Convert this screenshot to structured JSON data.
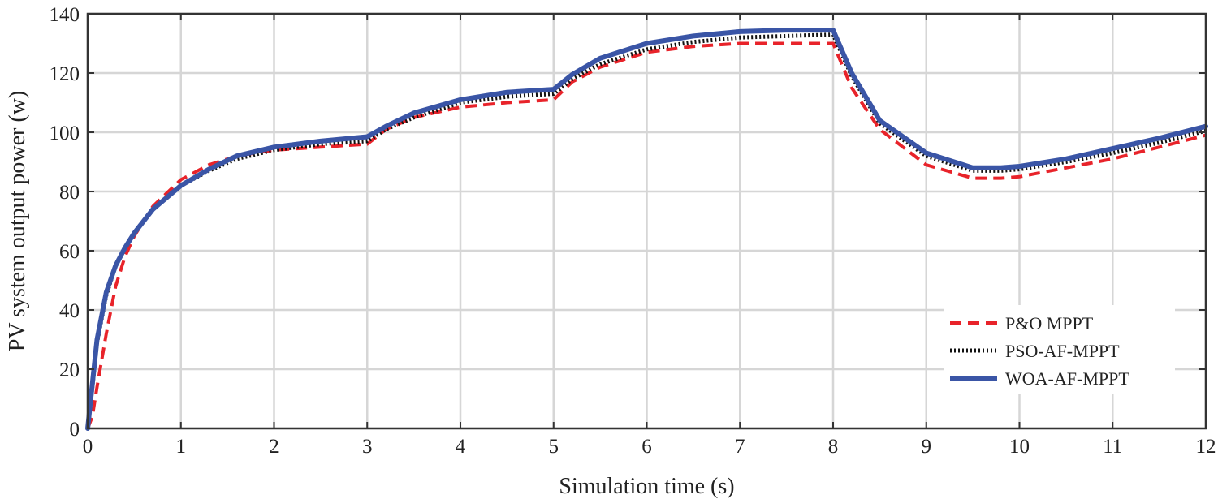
{
  "chart_data": {
    "type": "line",
    "title": "",
    "xlabel": "Simulation time (s)",
    "ylabel": "PV system output power (w)",
    "xlim": [
      0,
      12
    ],
    "ylim": [
      0,
      140
    ],
    "xticks": [
      0,
      1,
      2,
      3,
      4,
      5,
      6,
      7,
      8,
      9,
      10,
      11,
      12
    ],
    "yticks": [
      0,
      20,
      40,
      60,
      80,
      100,
      120,
      140
    ],
    "grid": true,
    "legend_position": "bottom-right",
    "series": [
      {
        "name": "P&O MPPT",
        "color": "#e8232a",
        "style": "dashed",
        "x": [
          0,
          0.05,
          0.1,
          0.2,
          0.3,
          0.4,
          0.5,
          0.7,
          1.0,
          1.3,
          1.6,
          2.0,
          2.5,
          3.0,
          3.2,
          3.5,
          4.0,
          4.5,
          5.0,
          5.2,
          5.5,
          6.0,
          6.5,
          7.0,
          7.5,
          8.0,
          8.2,
          8.5,
          9.0,
          9.5,
          9.8,
          10.0,
          10.5,
          11.0,
          11.5,
          12.0
        ],
        "y": [
          0,
          4,
          14,
          32,
          48,
          58,
          65,
          75,
          84,
          89,
          92,
          94,
          95,
          96,
          101,
          105,
          108.5,
          110,
          111,
          117,
          122,
          127,
          129,
          130,
          130,
          130,
          115,
          101,
          89,
          84.5,
          84.5,
          85,
          88,
          91,
          95,
          99
        ]
      },
      {
        "name": "PSO-AF-MPPT",
        "color": "#111111",
        "style": "dotted",
        "x": [
          0,
          0.05,
          0.1,
          0.2,
          0.3,
          0.4,
          0.5,
          0.7,
          1.0,
          1.3,
          1.6,
          2.0,
          2.5,
          3.0,
          3.2,
          3.5,
          4.0,
          4.5,
          5.0,
          5.2,
          5.5,
          6.0,
          6.5,
          7.0,
          7.5,
          8.0,
          8.2,
          8.5,
          9.0,
          9.5,
          9.8,
          10.0,
          10.5,
          11.0,
          11.5,
          12.0
        ],
        "y": [
          0,
          14,
          29,
          45,
          55,
          61,
          66,
          74,
          82,
          87,
          91,
          94,
          96,
          97,
          101,
          105,
          110,
          112,
          113,
          118,
          123,
          128,
          130.5,
          132,
          132.5,
          133,
          119,
          103,
          92,
          87,
          87,
          87.5,
          90,
          93,
          96.5,
          100.5
        ]
      },
      {
        "name": "WOA-AF-MPPT",
        "color": "#3a55a6",
        "style": "solid",
        "x": [
          0,
          0.05,
          0.1,
          0.2,
          0.3,
          0.4,
          0.5,
          0.7,
          1.0,
          1.3,
          1.6,
          2.0,
          2.5,
          3.0,
          3.2,
          3.5,
          4.0,
          4.5,
          5.0,
          5.2,
          5.5,
          6.0,
          6.5,
          7.0,
          7.5,
          8.0,
          8.2,
          8.5,
          9.0,
          9.5,
          9.8,
          10.0,
          10.5,
          11.0,
          11.5,
          12.0
        ],
        "y": [
          0,
          15,
          30,
          46,
          55,
          61,
          66,
          74,
          82,
          87.5,
          92,
          95,
          97,
          98.5,
          102,
          106.5,
          111,
          113.5,
          114.5,
          119.5,
          125,
          130,
          132.5,
          134,
          134.5,
          134.5,
          120,
          104,
          93,
          88,
          88,
          88.5,
          91,
          94.5,
          98,
          102
        ]
      }
    ]
  }
}
